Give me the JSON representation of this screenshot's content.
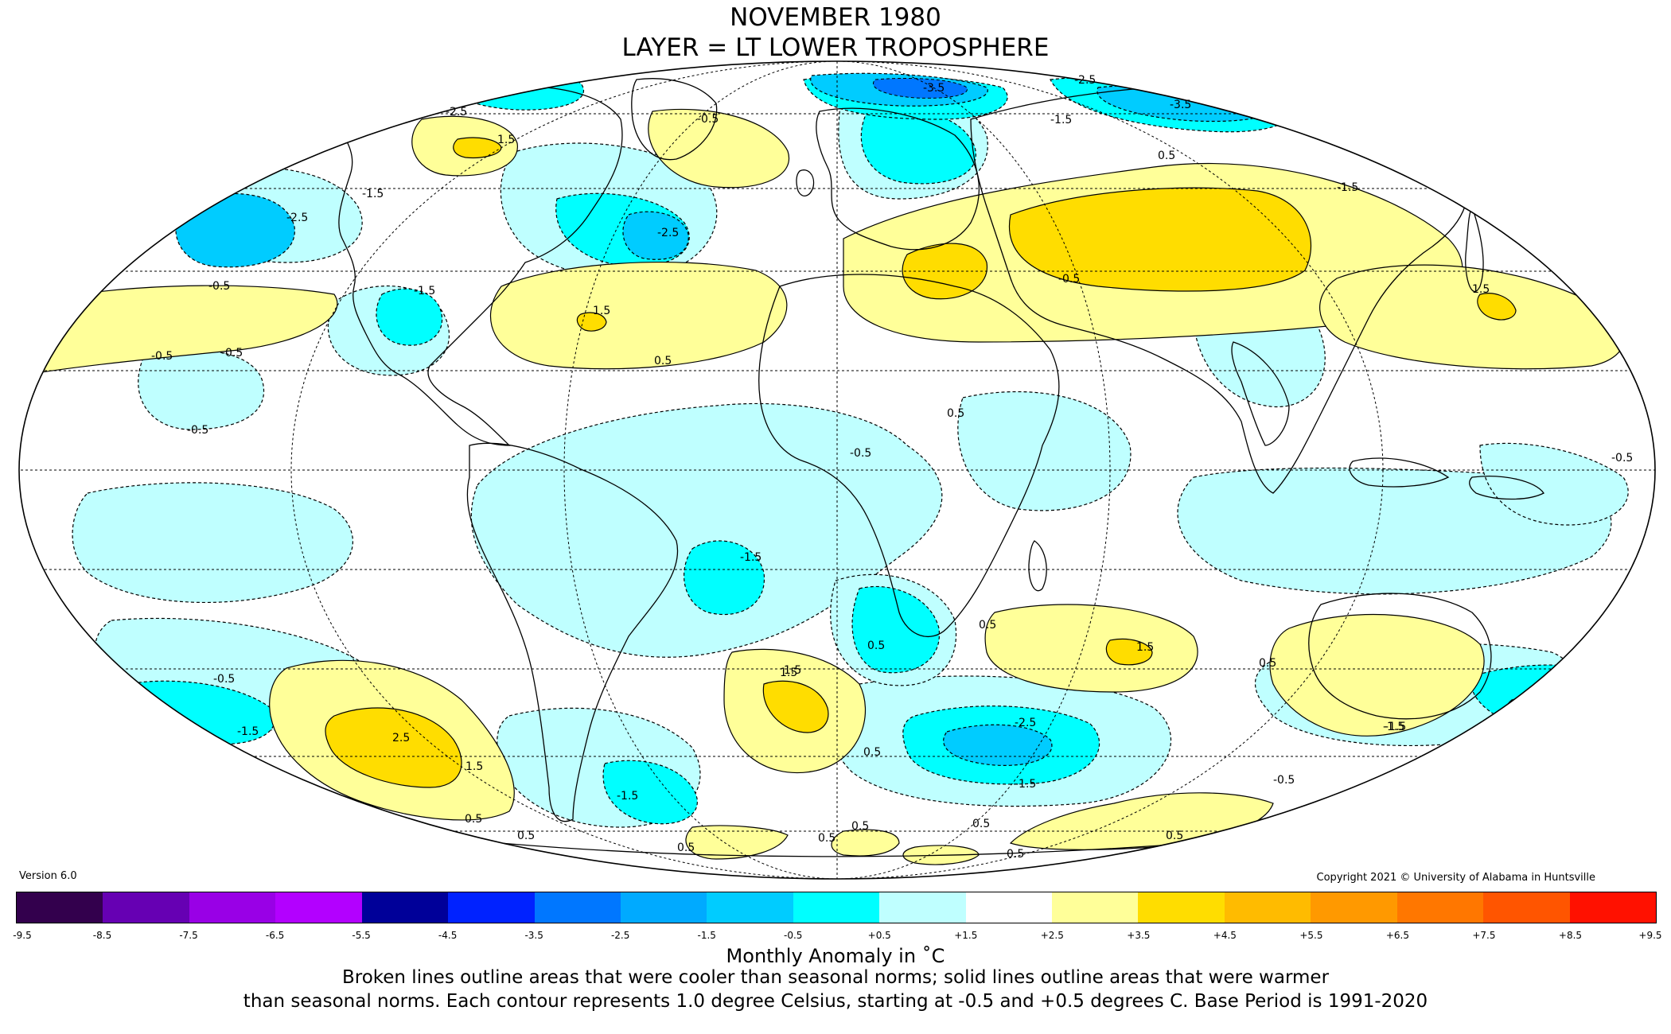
{
  "title_line1": "NOVEMBER 1980",
  "title_line2": "LAYER = LT LOWER TROPOSPHERE",
  "version": "Version 6.0",
  "copyright": "Copyright 2021 © University of Alabama in Huntsville",
  "colorbar": {
    "ticks": [
      "-9.5",
      "-8.5",
      "-7.5",
      "-6.5",
      "-5.5",
      "-4.5",
      "-3.5",
      "-2.5",
      "-1.5",
      "-0.5",
      "+0.5",
      "+1.5",
      "+2.5",
      "+3.5",
      "+4.5",
      "+5.5",
      "+6.5",
      "+7.5",
      "+8.5",
      "+9.5"
    ],
    "colors": [
      "#33004d",
      "#6600b3",
      "#9900e6",
      "#b300ff",
      "#000099",
      "#0022ff",
      "#0077ff",
      "#00aaff",
      "#00ccff",
      "#00ffff",
      "#bfffff",
      "#ffffff",
      "#ffff99",
      "#ffdd00",
      "#ffbb00",
      "#ff9900",
      "#ff7700",
      "#ff5500",
      "#ff1100",
      "#dd0000",
      "#bb0000"
    ],
    "title": "Monthly Anomaly in ˚C"
  },
  "note_line1": "Broken lines outline areas that were cooler than seasonal norms; solid lines outline areas that were warmer",
  "note_line2": "than seasonal norms. Each contour represents 1.0 degree Celsius, starting at -0.5 and +0.5 degrees C. Base Period is 1991-2020",
  "contour_labels": [
    "-2.5",
    "1.5",
    "-1.5",
    "-2.5",
    "-0.5",
    "-0.5",
    "-1.5",
    "-0.5",
    "1.5",
    "0.5",
    "-2.5",
    "-0.5",
    "-3.5",
    "-2.5",
    "-3.5",
    "-1.5",
    "0.5",
    "-1.5",
    "-0.5",
    "1.5",
    "0.5",
    "-0.5",
    "-0.5",
    "-1.5",
    "0.5",
    "1.5",
    "0.5",
    "1.5",
    "0.5",
    "-2.5",
    "-1.5",
    "-1.5",
    "2.5",
    "1.5",
    "0.5",
    "-1.5",
    "0.5",
    "0.5",
    "0.5",
    "0.5",
    "0.5",
    "0.5",
    "0.5",
    "-0.5",
    "-1.5",
    "-0.5",
    "0.5",
    "-0.5",
    "-1.5",
    "1.5"
  ],
  "fill_colors": {
    "ocean_neutral": "#ffffff",
    "cool_05": "#bfffff",
    "cool_15": "#00ffff",
    "cool_25": "#00ccff",
    "cool_35": "#0077ff",
    "warm_05": "#ffff99",
    "warm_15": "#ffdd00"
  }
}
